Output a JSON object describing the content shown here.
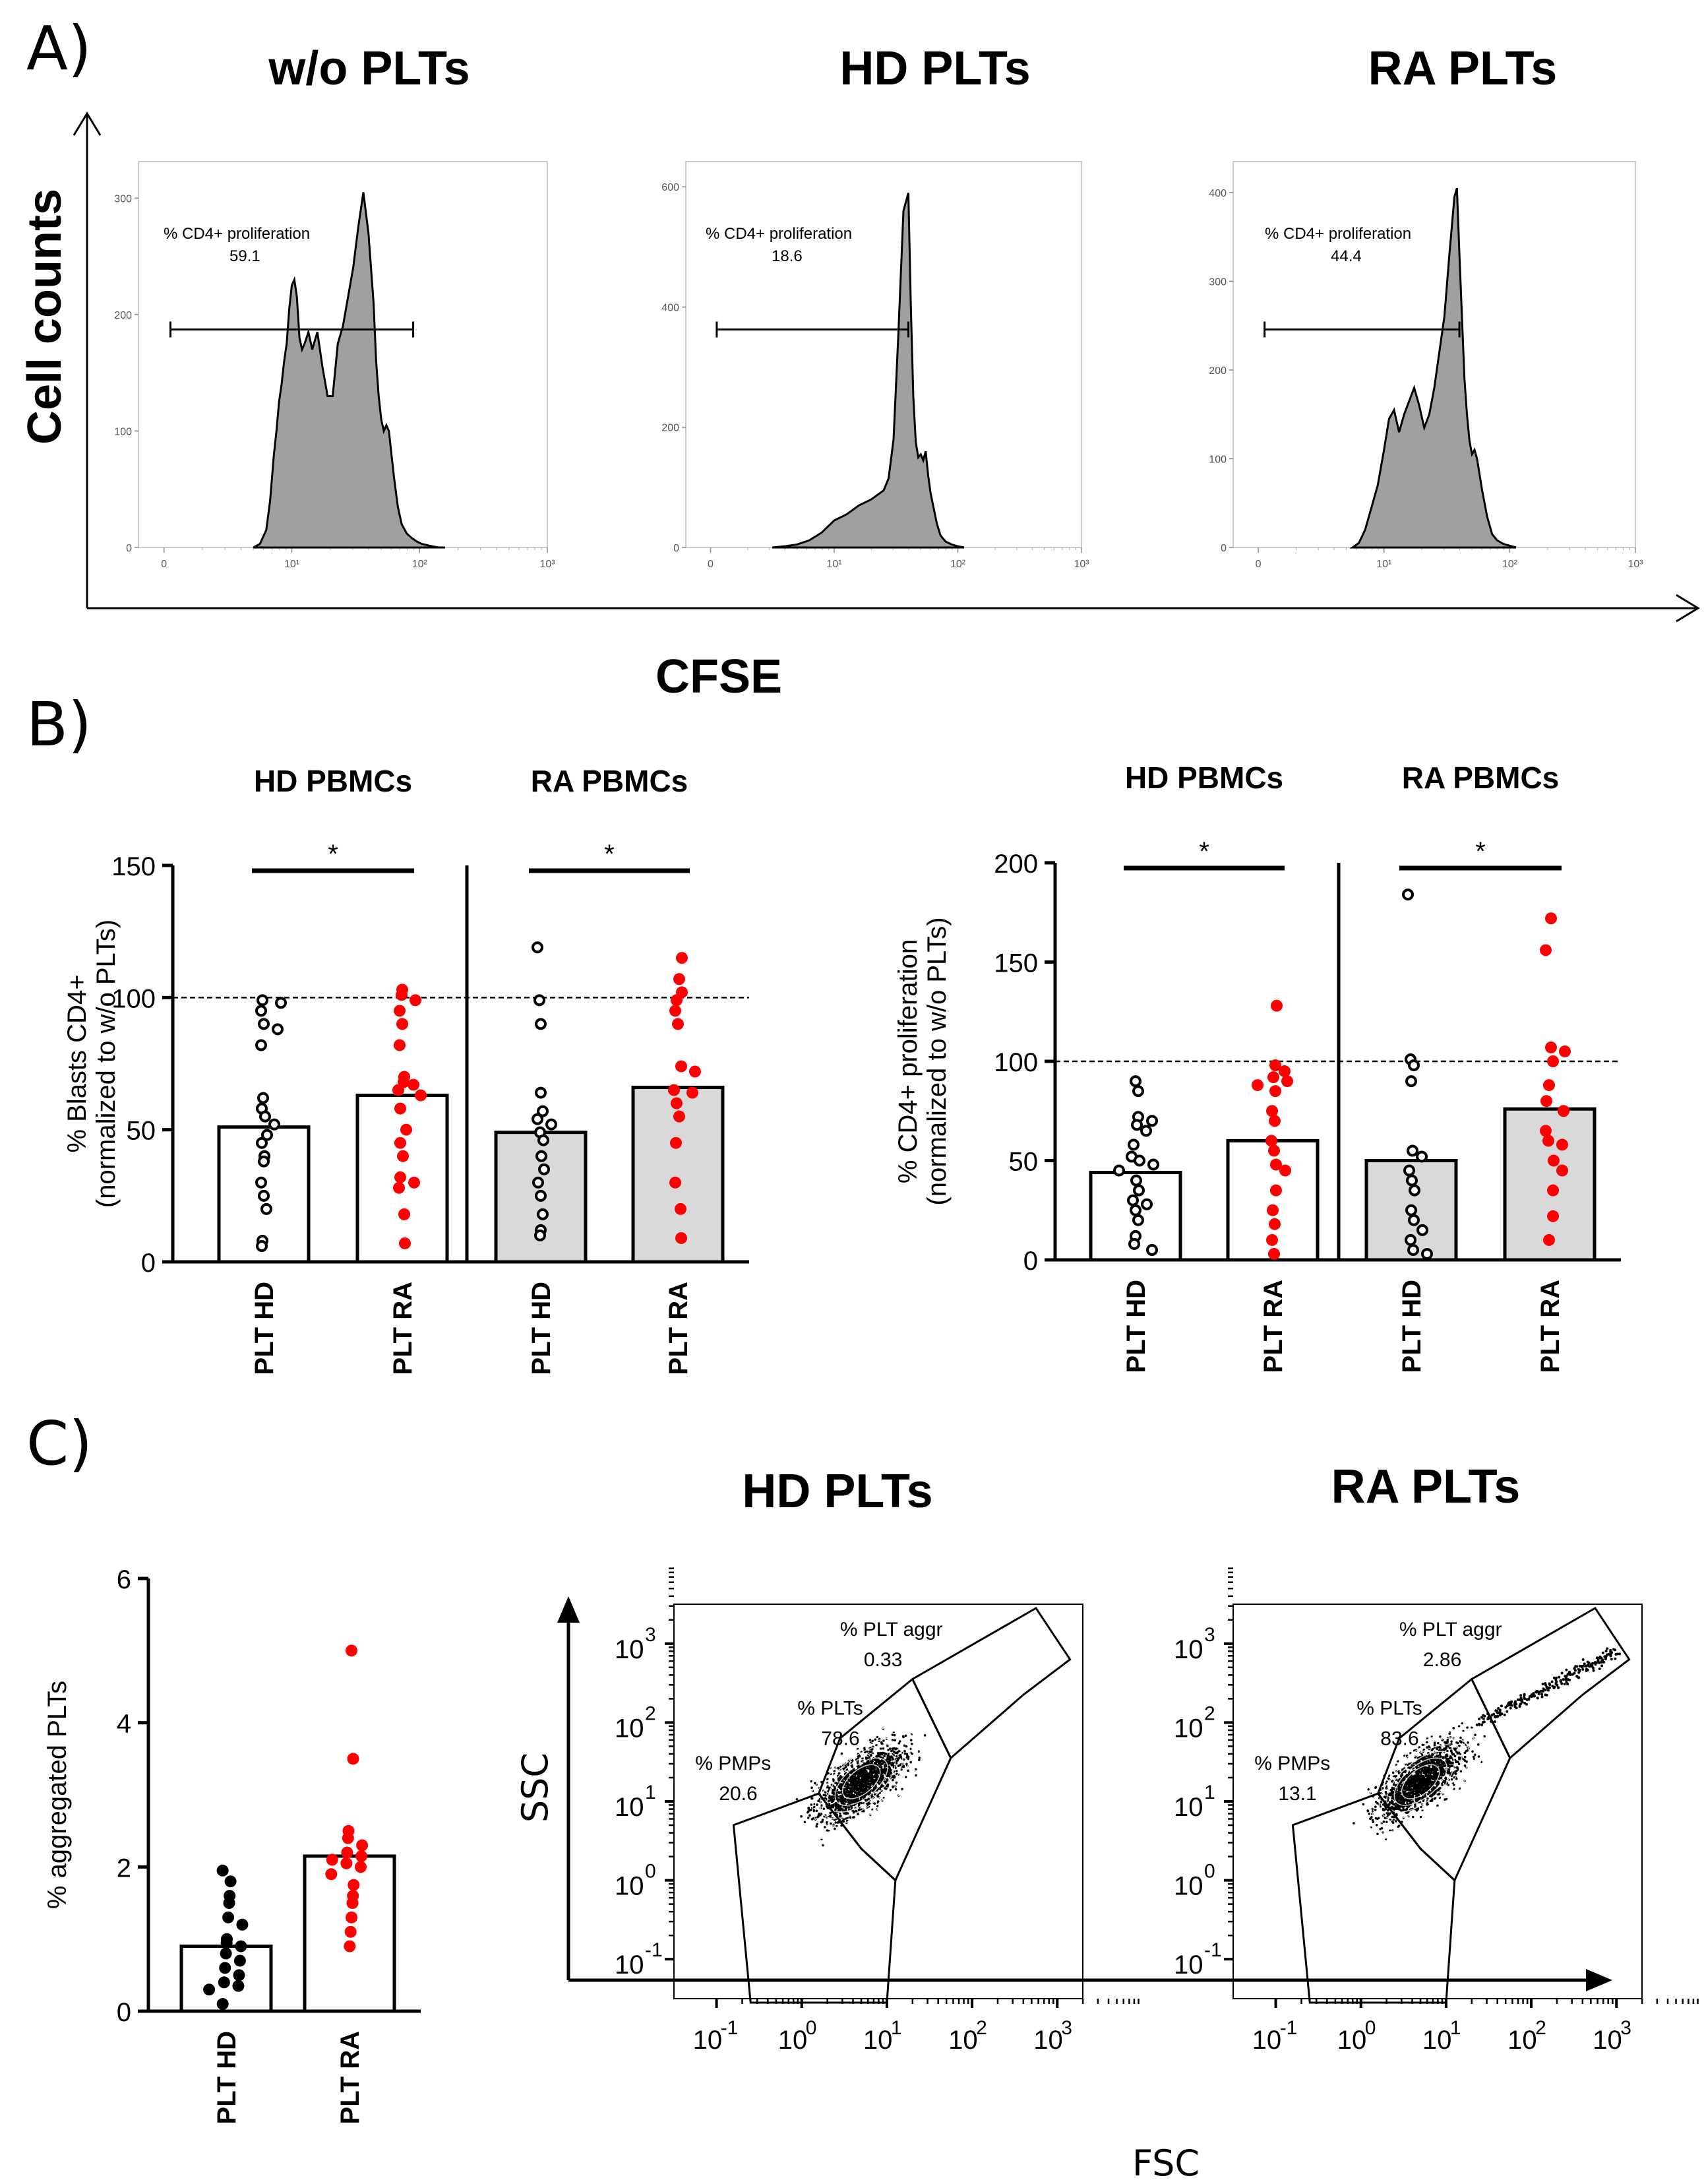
{
  "panels": {
    "a": "A)",
    "b": "B)",
    "c": "C)"
  },
  "colors": {
    "red": "#ff0000",
    "black": "#000000",
    "grey_fill": "#a0a0a0",
    "bar_grey": "#d9d9d9"
  },
  "panel_a": {
    "y_axis_label": "Cell counts",
    "x_axis_label": "CFSE",
    "gate_label": "% CD4+ proliferation",
    "titles": [
      "w/o PLTs",
      "HD PLTs",
      "RA PLTs"
    ],
    "title_colors": [
      "#000000",
      "#000000",
      "#ff0000"
    ],
    "x_ticks": [
      "0",
      "10¹",
      "10²",
      "10³"
    ]
  },
  "panel_c": {
    "titles": [
      "HD PLTs",
      "RA PLTs"
    ],
    "title_colors": [
      "#000000",
      "#ff0000"
    ],
    "x_axis_label": "FSC",
    "y_axis_label": "SSC",
    "gate_names": [
      "% PLT aggr",
      "% PLTs",
      "% PMPs"
    ],
    "x_tick_base": "10",
    "x_tick_exps": [
      "-1",
      "0",
      "1",
      "2",
      "3"
    ],
    "y_tick_exps": [
      "3",
      "2",
      "1",
      "0",
      "-1"
    ]
  },
  "chart_data": [
    {
      "type": "area",
      "title": "w/o PLTs",
      "xlabel": "CFSE",
      "ylabel": "Cell counts",
      "y_ticks": [
        0,
        100,
        200,
        300
      ],
      "ylim": [
        0,
        320
      ],
      "annotation": {
        "label": "% CD4+ proliferation",
        "value": "59.1"
      },
      "x": [
        0.7,
        0.75,
        0.8,
        0.83,
        0.86,
        0.88,
        0.9,
        0.92,
        0.94,
        0.96,
        0.98,
        1.0,
        1.02,
        1.04,
        1.06,
        1.08,
        1.1,
        1.13,
        1.16,
        1.2,
        1.24,
        1.28,
        1.32,
        1.36,
        1.4,
        1.44,
        1.48,
        1.52,
        1.56,
        1.6,
        1.64,
        1.66,
        1.68,
        1.7,
        1.72,
        1.74,
        1.76,
        1.78,
        1.8,
        1.83,
        1.86,
        1.9,
        1.94,
        1.98,
        2.02,
        2.06,
        2.1,
        2.15,
        2.2
      ],
      "y": [
        0,
        3,
        15,
        40,
        80,
        100,
        125,
        140,
        160,
        175,
        205,
        225,
        230,
        215,
        180,
        170,
        175,
        185,
        170,
        185,
        155,
        130,
        130,
        175,
        190,
        215,
        240,
        275,
        305,
        270,
        210,
        160,
        130,
        110,
        100,
        105,
        100,
        80,
        60,
        35,
        20,
        12,
        8,
        5,
        3,
        2,
        1,
        0,
        0
      ]
    },
    {
      "type": "area",
      "title": "HD PLTs",
      "xlabel": "CFSE",
      "ylabel": "Cell counts",
      "y_ticks": [
        0,
        200,
        400,
        600
      ],
      "ylim": [
        0,
        620
      ],
      "annotation": {
        "label": "% CD4+ proliferation",
        "value": "18.6"
      },
      "x": [
        0.5,
        0.6,
        0.7,
        0.8,
        0.9,
        1.0,
        1.1,
        1.2,
        1.3,
        1.4,
        1.44,
        1.48,
        1.52,
        1.56,
        1.6,
        1.62,
        1.64,
        1.66,
        1.68,
        1.7,
        1.72,
        1.74,
        1.76,
        1.78,
        1.8,
        1.83,
        1.86,
        1.9,
        1.95,
        2.0,
        2.05
      ],
      "y": [
        0,
        2,
        5,
        12,
        25,
        45,
        55,
        70,
        80,
        95,
        115,
        180,
        360,
        560,
        590,
        400,
        250,
        175,
        150,
        155,
        145,
        160,
        120,
        90,
        70,
        40,
        20,
        10,
        5,
        2,
        0
      ]
    },
    {
      "type": "area",
      "title": "RA PLTs",
      "xlabel": "CFSE",
      "ylabel": "Cell counts",
      "y_ticks": [
        0,
        100,
        200,
        300,
        400
      ],
      "ylim": [
        0,
        420
      ],
      "annotation": {
        "label": "% CD4+ proliferation",
        "value": "44.4"
      },
      "x": [
        0.75,
        0.8,
        0.85,
        0.9,
        0.95,
        1.0,
        1.04,
        1.08,
        1.12,
        1.16,
        1.2,
        1.24,
        1.28,
        1.32,
        1.36,
        1.4,
        1.44,
        1.48,
        1.52,
        1.56,
        1.58,
        1.6,
        1.62,
        1.64,
        1.66,
        1.68,
        1.7,
        1.72,
        1.74,
        1.78,
        1.82,
        1.86,
        1.9,
        1.95,
        2.0,
        2.05
      ],
      "y": [
        0,
        5,
        20,
        45,
        70,
        110,
        145,
        155,
        130,
        150,
        165,
        180,
        160,
        135,
        150,
        180,
        220,
        260,
        330,
        395,
        405,
        330,
        260,
        190,
        150,
        120,
        105,
        110,
        100,
        65,
        35,
        15,
        8,
        4,
        2,
        0
      ]
    },
    {
      "type": "bar",
      "title": "HD PBMCs / RA PBMCs",
      "group_labels": [
        "HD PBMCs",
        "RA PBMCs"
      ],
      "categories": [
        "PLT HD",
        "PLT RA",
        "PLT HD",
        "PLT RA"
      ],
      "ylabel": "% Blasts CD4+ (normalized to w/o PLTs)",
      "ylim": [
        0,
        150
      ],
      "y_ticks": [
        0,
        50,
        100,
        150
      ],
      "reference_line": 100,
      "bar_fills": [
        "#ffffff",
        "#ffffff",
        "#d9d9d9",
        "#d9d9d9"
      ],
      "point_colors": [
        "#000000",
        "#ff0000",
        "#000000",
        "#ff0000"
      ],
      "values": [
        51,
        63,
        49,
        66
      ],
      "points": [
        [
          99,
          95,
          98,
          90,
          88,
          82,
          62,
          58,
          55,
          52,
          48,
          45,
          40,
          38,
          30,
          25,
          20,
          8,
          6
        ],
        [
          103,
          101,
          99,
          95,
          90,
          82,
          70,
          68,
          67,
          65,
          63,
          58,
          50,
          45,
          40,
          32,
          30,
          28,
          18,
          7
        ],
        [
          119,
          99,
          90,
          64,
          57,
          54,
          52,
          49,
          46,
          40,
          35,
          30,
          25,
          18,
          12,
          10
        ],
        [
          115,
          107,
          102,
          99,
          95,
          90,
          74,
          72,
          65,
          64,
          60,
          55,
          45,
          30,
          20,
          9
        ]
      ],
      "significance": [
        {
          "pair": [
            0,
            1
          ],
          "label": "*"
        },
        {
          "pair": [
            2,
            3
          ],
          "label": "*"
        }
      ]
    },
    {
      "type": "bar",
      "title": "HD PBMCs / RA PBMCs",
      "group_labels": [
        "HD PBMCs",
        "RA PBMCs"
      ],
      "categories": [
        "PLT HD",
        "PLT RA",
        "PLT HD",
        "PLT RA"
      ],
      "ylabel": "% CD4+ proliferation (normalized to w/o PLTs)",
      "ylim": [
        0,
        200
      ],
      "y_ticks": [
        0,
        50,
        100,
        150,
        200
      ],
      "reference_line": 100,
      "bar_fills": [
        "#ffffff",
        "#ffffff",
        "#d9d9d9",
        "#d9d9d9"
      ],
      "point_colors": [
        "#000000",
        "#ff0000",
        "#000000",
        "#ff0000"
      ],
      "values": [
        44,
        60,
        50,
        76
      ],
      "points": [
        [
          90,
          85,
          72,
          70,
          68,
          65,
          58,
          52,
          50,
          48,
          45,
          40,
          35,
          30,
          28,
          25,
          20,
          12,
          8,
          5
        ],
        [
          128,
          98,
          95,
          92,
          90,
          88,
          85,
          75,
          70,
          60,
          55,
          48,
          45,
          35,
          25,
          18,
          10,
          3
        ],
        [
          184,
          101,
          98,
          90,
          55,
          52,
          45,
          40,
          35,
          25,
          20,
          15,
          10,
          5,
          3
        ],
        [
          172,
          156,
          107,
          105,
          100,
          88,
          80,
          75,
          65,
          60,
          58,
          50,
          45,
          35,
          22,
          10
        ]
      ],
      "significance": [
        {
          "pair": [
            0,
            1
          ],
          "label": "*"
        },
        {
          "pair": [
            2,
            3
          ],
          "label": "*"
        }
      ]
    },
    {
      "type": "bar",
      "ylabel": "% aggregated PLTs",
      "categories": [
        "PLT HD",
        "PLT RA"
      ],
      "ylim": [
        0,
        6
      ],
      "y_ticks": [
        0,
        2,
        4,
        6
      ],
      "values": [
        0.9,
        2.15
      ],
      "point_colors": [
        "#000000",
        "#ff0000"
      ],
      "points": [
        [
          1.95,
          1.8,
          1.6,
          1.5,
          1.3,
          1.2,
          1.0,
          0.95,
          0.9,
          0.8,
          0.7,
          0.6,
          0.5,
          0.4,
          0.35,
          0.3,
          0.1
        ],
        [
          5.0,
          3.5,
          2.5,
          2.4,
          2.3,
          2.2,
          2.15,
          2.1,
          2.05,
          2.0,
          1.9,
          1.75,
          1.6,
          1.5,
          1.3,
          1.1,
          0.9
        ]
      ]
    },
    {
      "type": "scatter",
      "title": "HD PLTs",
      "xlabel": "FSC",
      "ylabel": "SSC",
      "x_scale": "log",
      "y_scale": "log",
      "gates": [
        {
          "name": "% PLT aggr",
          "value": "0.33"
        },
        {
          "name": "% PLTs",
          "value": "78.6"
        },
        {
          "name": "% PMPs",
          "value": "20.6"
        }
      ]
    },
    {
      "type": "scatter",
      "title": "RA PLTs",
      "xlabel": "FSC",
      "ylabel": "SSC",
      "x_scale": "log",
      "y_scale": "log",
      "gates": [
        {
          "name": "% PLT aggr",
          "value": "2.86"
        },
        {
          "name": "% PLTs",
          "value": "83.6"
        },
        {
          "name": "% PMPs",
          "value": "13.1"
        }
      ]
    }
  ]
}
